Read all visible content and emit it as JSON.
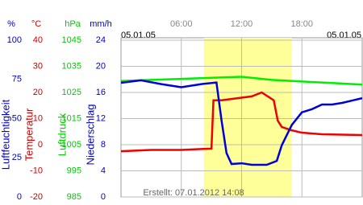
{
  "chart_data": {
    "type": "line",
    "date_left": "05.01.05",
    "date_right": "05.01.05",
    "footer": "Erstellt: 07.01.2012 14:08",
    "xlim": [
      0,
      24
    ],
    "xticks": [
      {
        "value": 6,
        "label": "06:00"
      },
      {
        "value": 12,
        "label": "12:00"
      },
      {
        "value": 18,
        "label": "18:00"
      }
    ],
    "daylight": [
      8.25,
      17.0
    ],
    "grid": true,
    "y_axes": [
      {
        "unit": "%",
        "title": "Luftfeuchtigkeit",
        "color": "#0000cc",
        "ylim": [
          0,
          100
        ],
        "yticks": [
          0,
          25,
          50,
          75,
          100
        ]
      },
      {
        "unit": "°C",
        "title": "Temperatur",
        "color": "#cc0000",
        "ylim": [
          -20,
          40
        ],
        "yticks": [
          -20,
          -10,
          0,
          10,
          20,
          30,
          40
        ]
      },
      {
        "unit": "hPa",
        "title": "Luftdruck",
        "color": "#00cc00",
        "ylim": [
          985,
          1045
        ],
        "yticks": [
          985,
          995,
          1005,
          1015,
          1025,
          1035,
          1045
        ]
      },
      {
        "unit": "mm/h",
        "title": "Niederschlag",
        "color": "#0000cc",
        "ylim": [
          0,
          24
        ],
        "yticks": [
          0,
          4,
          8,
          12,
          16,
          20,
          24
        ]
      }
    ],
    "series": [
      {
        "axis": 2,
        "color": "#00ee00",
        "x": [
          0,
          3,
          6,
          9,
          12,
          15,
          18,
          21,
          24
        ],
        "values": [
          1029.4,
          1029.8,
          1030.2,
          1030.6,
          1031.0,
          1029.8,
          1029.2,
          1028.6,
          1028.0
        ]
      },
      {
        "axis": 1,
        "color": "#ee0000",
        "x": [
          0,
          3,
          6,
          9,
          9.2,
          10,
          11,
          12,
          13,
          14,
          15.2,
          15.6,
          16,
          17,
          18,
          20,
          24
        ],
        "values": [
          -2.5,
          -2.0,
          -2.0,
          -1.5,
          17,
          17,
          17.5,
          18,
          18.5,
          20,
          17,
          9.2,
          6.8,
          5.5,
          4.6,
          4,
          3.7
        ]
      },
      {
        "axis": 0,
        "color": "#0000dd",
        "x": [
          0,
          2,
          4,
          6,
          8,
          9.5,
          10,
          10.5,
          11,
          12,
          13,
          14.5,
          15.5,
          16,
          17,
          18,
          19,
          20,
          21,
          22,
          23,
          24
        ],
        "values": [
          72.8,
          74.4,
          72,
          70,
          72,
          73,
          49,
          28,
          21,
          21.5,
          20.5,
          20.5,
          23,
          33,
          46,
          54,
          56,
          59,
          59,
          60,
          61.5,
          63
        ]
      }
    ]
  }
}
